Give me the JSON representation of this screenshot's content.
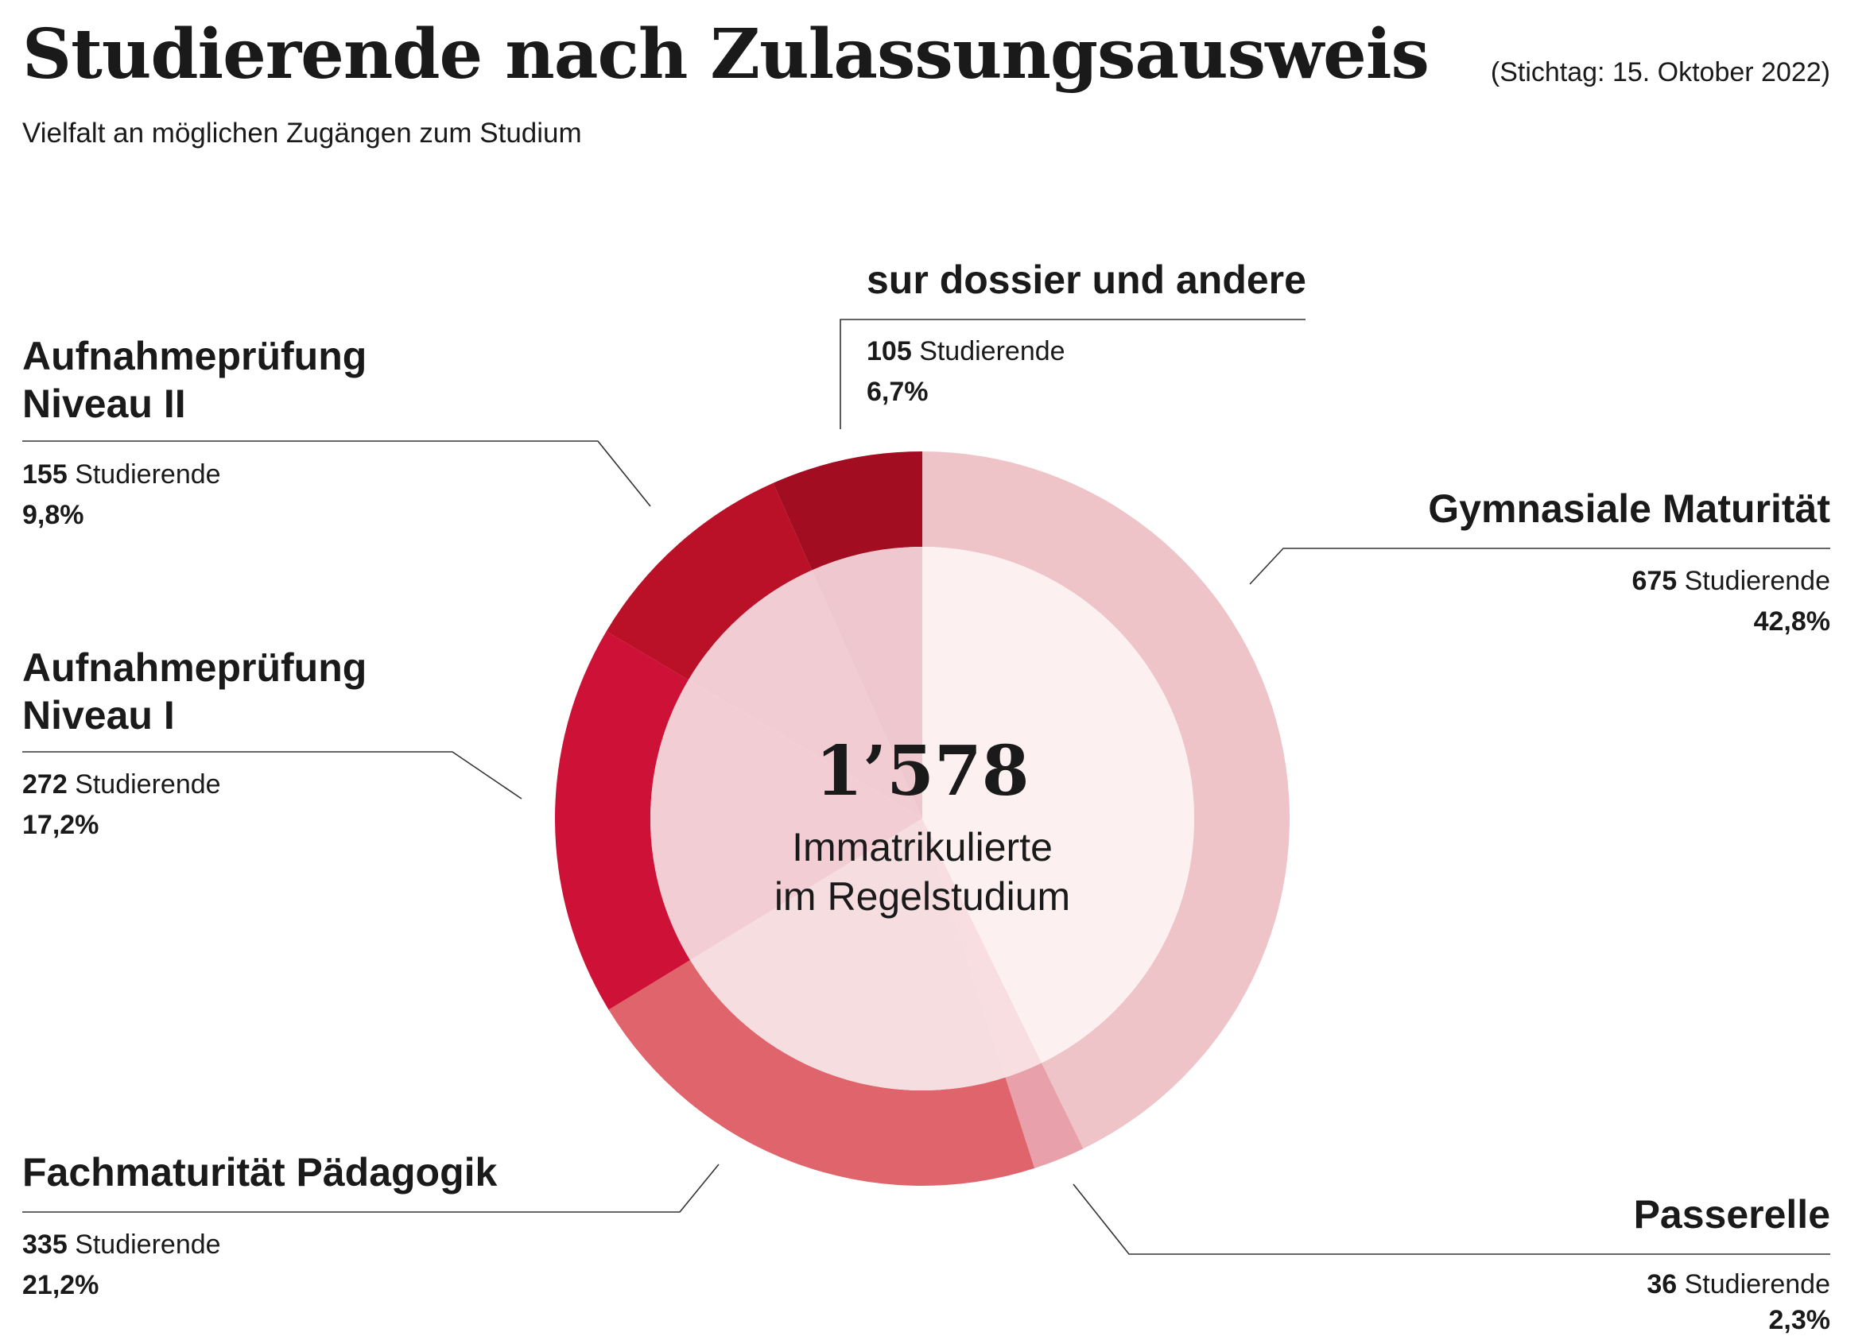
{
  "header": {
    "title": "Studierende nach Zulassungsausweis",
    "date_note": "(Stichtag: 15. Oktober 2022)",
    "subtitle": "Vielfalt an möglichen Zugängen zum Studium"
  },
  "center": {
    "total": "1’578",
    "caption_line1": "Immatrikulierte",
    "caption_line2": "im Regelstudium"
  },
  "chart_data": {
    "type": "pie",
    "total": 1578,
    "unit_label": "Studierende",
    "slices": [
      {
        "title": "Gymnasiale Maturität",
        "value": 675,
        "percent": "42,8%",
        "color": "#efc4c9",
        "inner_color": "#fdf0f1"
      },
      {
        "title": "Passerelle",
        "value": 36,
        "percent": "2,3%",
        "color": "#e8a1aa",
        "inner_color": "#f9dee1"
      },
      {
        "title": "Fachmaturität Pädagogik",
        "value": 335,
        "percent": "21,2%",
        "color": "#e0646c",
        "inner_color": "#f6dde0"
      },
      {
        "title": "Aufnahmeprüfung Niveau I",
        "value": 272,
        "percent": "17,2%",
        "color": "#ce1136",
        "inner_color": "#f2ced4"
      },
      {
        "title": "Aufnahmeprüfung Niveau II",
        "value": 155,
        "percent": "9,8%",
        "color": "#ba1028",
        "inner_color": "#f2ccd3"
      },
      {
        "title": "sur dossier und andere",
        "value": 105,
        "percent": "6,7%",
        "color": "#a30d22",
        "inner_color": "#efc7ce"
      }
    ]
  }
}
